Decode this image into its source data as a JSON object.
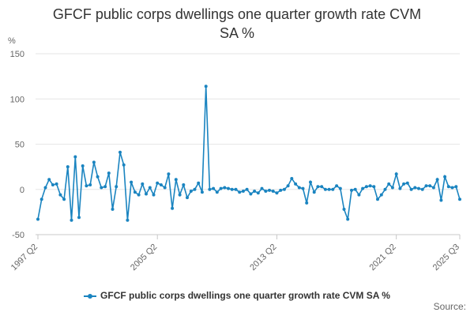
{
  "chart_data": {
    "type": "line",
    "title": "GFCF public corps dwellings one quarter growth rate CVM SA %",
    "title_lines": [
      "GFCF public corps dwellings one quarter growth rate CVM",
      "SA %"
    ],
    "ylabel": "%",
    "ylim": [
      -50,
      150
    ],
    "yticks": [
      -50,
      0,
      50,
      100,
      150
    ],
    "xtick_labels": [
      "1997 Q2",
      "2005 Q2",
      "2013 Q2",
      "2021 Q2",
      "2025 Q3"
    ],
    "grid": true,
    "legend_position": "bottom",
    "color": "#1a84c0",
    "series": [
      {
        "name": "GFCF public corps dwellings one quarter growth rate CVM SA %",
        "x": [
          "1997 Q2",
          "1997 Q3",
          "1997 Q4",
          "1998 Q1",
          "1998 Q2",
          "1998 Q3",
          "1998 Q4",
          "1999 Q1",
          "1999 Q2",
          "1999 Q3",
          "1999 Q4",
          "2000 Q1",
          "2000 Q2",
          "2000 Q3",
          "2000 Q4",
          "2001 Q1",
          "2001 Q2",
          "2001 Q3",
          "2001 Q4",
          "2002 Q1",
          "2002 Q2",
          "2002 Q3",
          "2002 Q4",
          "2003 Q1",
          "2003 Q2",
          "2003 Q3",
          "2003 Q4",
          "2004 Q1",
          "2004 Q2",
          "2004 Q3",
          "2004 Q4",
          "2005 Q1",
          "2005 Q2",
          "2005 Q3",
          "2005 Q4",
          "2006 Q1",
          "2006 Q2",
          "2006 Q3",
          "2006 Q4",
          "2007 Q1",
          "2007 Q2",
          "2007 Q3",
          "2007 Q4",
          "2008 Q1",
          "2008 Q2",
          "2008 Q3",
          "2008 Q4",
          "2009 Q1",
          "2009 Q2",
          "2009 Q3",
          "2009 Q4",
          "2010 Q1",
          "2010 Q2",
          "2010 Q3",
          "2010 Q4",
          "2011 Q1",
          "2011 Q2",
          "2011 Q3",
          "2011 Q4",
          "2012 Q1",
          "2012 Q2",
          "2012 Q3",
          "2012 Q4",
          "2013 Q1",
          "2013 Q2",
          "2013 Q3",
          "2013 Q4",
          "2014 Q1",
          "2014 Q2",
          "2014 Q3",
          "2014 Q4",
          "2015 Q1",
          "2015 Q2",
          "2015 Q3",
          "2015 Q4",
          "2016 Q1",
          "2016 Q2",
          "2016 Q3",
          "2016 Q4",
          "2017 Q1",
          "2017 Q2",
          "2017 Q3",
          "2017 Q4",
          "2018 Q1",
          "2018 Q2",
          "2018 Q3",
          "2018 Q4",
          "2019 Q1",
          "2019 Q2",
          "2019 Q3",
          "2019 Q4",
          "2020 Q1",
          "2020 Q2",
          "2020 Q3",
          "2020 Q4",
          "2021 Q1",
          "2021 Q2",
          "2021 Q3",
          "2021 Q4",
          "2022 Q1",
          "2022 Q2",
          "2022 Q3",
          "2022 Q4",
          "2023 Q1",
          "2023 Q2",
          "2023 Q3",
          "2023 Q4",
          "2024 Q1",
          "2024 Q2",
          "2024 Q3",
          "2024 Q4",
          "2025 Q1",
          "2025 Q2",
          "2025 Q3"
        ],
        "values": [
          -33,
          -11,
          2,
          11,
          5,
          6,
          -6,
          -11,
          25,
          -34,
          36,
          -31,
          26,
          4,
          5,
          30,
          14,
          2,
          3,
          18,
          -22,
          3,
          41,
          27,
          -34,
          8,
          -3,
          -6,
          6,
          -5,
          2,
          -6,
          7,
          5,
          2,
          17,
          -21,
          11,
          -6,
          5,
          -9,
          -2,
          0,
          7,
          -3,
          114,
          0,
          1,
          -3,
          1,
          2,
          1,
          0,
          0,
          -3,
          -2,
          0,
          -5,
          -2,
          -4,
          1,
          -2,
          -1,
          -2,
          -4,
          -1,
          0,
          4,
          12,
          6,
          2,
          1,
          -15,
          8,
          -3,
          3,
          3,
          0,
          0,
          0,
          4,
          1,
          -22,
          -33,
          -1,
          0,
          -6,
          1,
          3,
          4,
          3,
          -11,
          -6,
          0,
          6,
          2,
          17,
          1,
          6,
          7,
          0,
          2,
          1,
          0,
          4,
          4,
          2,
          11,
          -12,
          14,
          3,
          2,
          3,
          -11
        ]
      }
    ]
  },
  "legend": {
    "label": "GFCF public corps dwellings one quarter growth rate CVM SA %"
  },
  "source_label": "Source:"
}
